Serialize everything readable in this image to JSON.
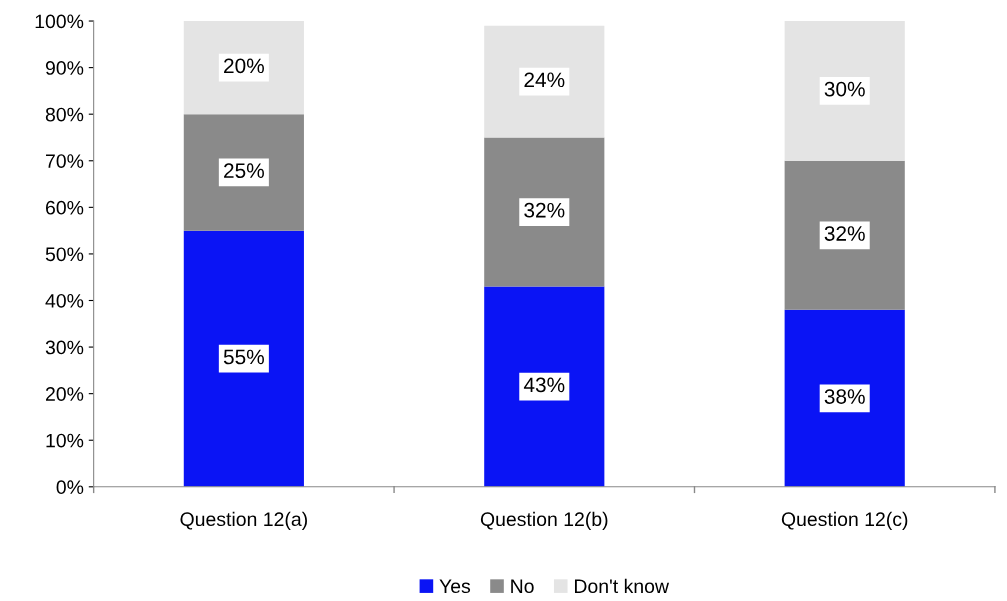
{
  "chart_data": {
    "type": "bar",
    "stacked": true,
    "categories": [
      "Question 12(a)",
      "Question 12(b)",
      "Question 12(c)"
    ],
    "series": [
      {
        "name": "Yes",
        "color": "#0a14f5",
        "values": [
          55,
          43,
          38
        ],
        "value_labels": [
          "55%",
          "43%",
          "38%"
        ]
      },
      {
        "name": "No",
        "color": "#8a8a8a",
        "values": [
          25,
          32,
          32
        ],
        "value_labels": [
          "25%",
          "32%",
          "32%"
        ]
      },
      {
        "name": "Don't know",
        "color": "#e4e4e4",
        "values": [
          20,
          24,
          30
        ],
        "value_labels": [
          "20%",
          "24%",
          "30%"
        ]
      }
    ],
    "ylim": [
      0,
      100
    ],
    "yticks": [
      {
        "value": 0,
        "label": "0%"
      },
      {
        "value": 10,
        "label": "10%"
      },
      {
        "value": 20,
        "label": "20%"
      },
      {
        "value": 30,
        "label": "30%"
      },
      {
        "value": 40,
        "label": "40%"
      },
      {
        "value": 50,
        "label": "50%"
      },
      {
        "value": 60,
        "label": "60%"
      },
      {
        "value": 70,
        "label": "70%"
      },
      {
        "value": 80,
        "label": "80%"
      },
      {
        "value": 90,
        "label": "90%"
      },
      {
        "value": 100,
        "label": "100%"
      }
    ],
    "grid": false,
    "legend": "bottom"
  }
}
